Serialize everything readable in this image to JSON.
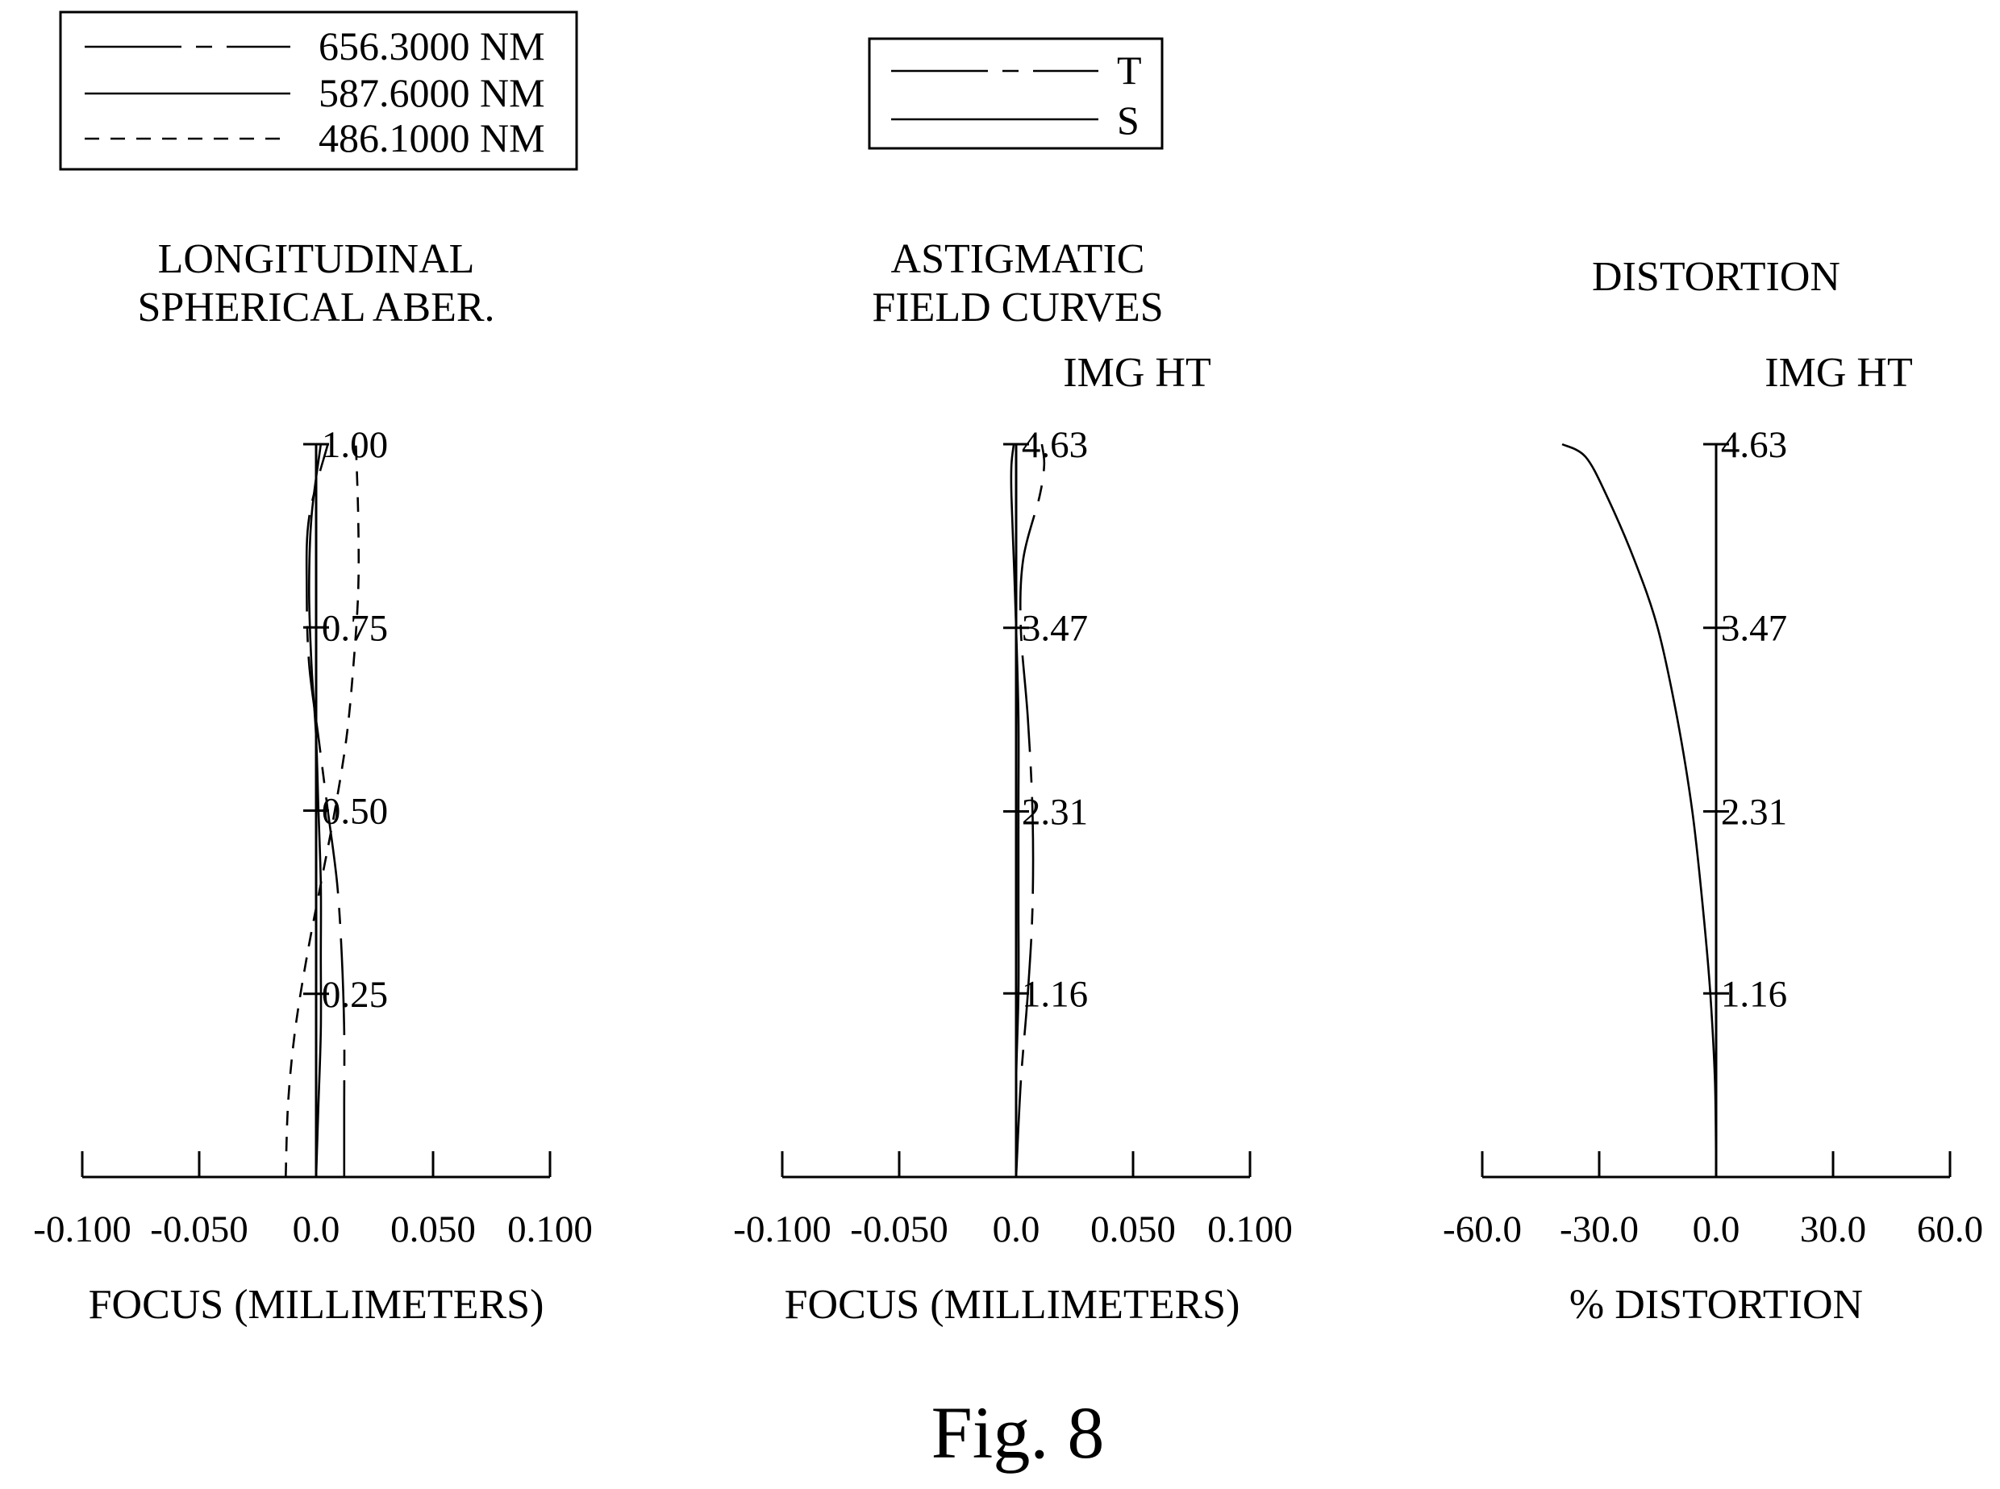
{
  "figure_caption": "Fig. 8",
  "legends": {
    "wavelength": [
      {
        "label": "656.3000 NM",
        "style": "long-dash"
      },
      {
        "label": "587.6000 NM",
        "style": "solid"
      },
      {
        "label": "486.1000 NM",
        "style": "short-dash"
      }
    ],
    "field": [
      {
        "label": "T",
        "style": "long-dash"
      },
      {
        "label": "S",
        "style": "solid"
      }
    ]
  },
  "chart_data": [
    {
      "id": "spherical",
      "type": "line",
      "title_lines": [
        "LONGITUDINAL",
        "SPHERICAL  ABER."
      ],
      "xlabel": "FOCUS (MILLIMETERS)",
      "ylabel_header": "",
      "xlim": [
        -0.1,
        0.1
      ],
      "ylim": [
        0,
        1
      ],
      "x_ticks": [
        -0.1,
        -0.05,
        0,
        0.05,
        0.1
      ],
      "x_tick_labels": [
        "-0.100",
        "-0.050",
        "0.0",
        "0.050",
        "0.100"
      ],
      "y_ticks": [
        0.25,
        0.5,
        0.75,
        1.0
      ],
      "y_tick_labels": [
        "0.25",
        "0.50",
        "0.75",
        "1.00"
      ],
      "series": [
        {
          "name": "656.3000 NM",
          "style": "long-dash",
          "points": [
            [
              0.012,
              0
            ],
            [
              0.012,
              0.1
            ],
            [
              0.012,
              0.2
            ],
            [
              0.011,
              0.3
            ],
            [
              0.009,
              0.4
            ],
            [
              0.005,
              0.5
            ],
            [
              0.001,
              0.6
            ],
            [
              -0.003,
              0.7
            ],
            [
              -0.004,
              0.8
            ],
            [
              -0.003,
              0.9
            ],
            [
              0.005,
              1.0
            ]
          ]
        },
        {
          "name": "587.6000 NM",
          "style": "solid",
          "points": [
            [
              0,
              0
            ],
            [
              0.001,
              0.1
            ],
            [
              0.002,
              0.2
            ],
            [
              0.002,
              0.3
            ],
            [
              0.002,
              0.4
            ],
            [
              0.001,
              0.5
            ],
            [
              0,
              0.6
            ],
            [
              -0.002,
              0.7
            ],
            [
              -0.003,
              0.8
            ],
            [
              -0.002,
              0.9
            ],
            [
              0.002,
              1.0
            ]
          ]
        },
        {
          "name": "486.1000 NM",
          "style": "short-dash",
          "points": [
            [
              -0.013,
              0
            ],
            [
              -0.012,
              0.1
            ],
            [
              -0.009,
              0.2
            ],
            [
              -0.004,
              0.3
            ],
            [
              0.002,
              0.4
            ],
            [
              0.008,
              0.5
            ],
            [
              0.013,
              0.6
            ],
            [
              0.016,
              0.7
            ],
            [
              0.018,
              0.8
            ],
            [
              0.018,
              0.9
            ],
            [
              0.017,
              1.0
            ]
          ]
        }
      ]
    },
    {
      "id": "astigmatic",
      "type": "line",
      "title_lines": [
        "ASTIGMATIC",
        "FIELD  CURVES"
      ],
      "xlabel": "FOCUS (MILLIMETERS)",
      "ylabel_header": "IMG HT",
      "xlim": [
        -0.1,
        0.1
      ],
      "ylim": [
        0,
        4.63
      ],
      "x_ticks": [
        -0.1,
        -0.05,
        0,
        0.05,
        0.1
      ],
      "x_tick_labels": [
        "-0.100",
        "-0.050",
        "0.0",
        "0.050",
        "0.100"
      ],
      "y_ticks": [
        1.16,
        2.31,
        3.47,
        4.63
      ],
      "y_tick_labels": [
        "1.16",
        "2.31",
        "3.47",
        "4.63"
      ],
      "series": [
        {
          "name": "T",
          "style": "long-dash",
          "points": [
            [
              0,
              0
            ],
            [
              0.002,
              0.6
            ],
            [
              0.005,
              1.16
            ],
            [
              0.007,
              1.7
            ],
            [
              0.007,
              2.31
            ],
            [
              0.005,
              2.9
            ],
            [
              0.002,
              3.47
            ],
            [
              0.003,
              3.9
            ],
            [
              0.01,
              4.3
            ],
            [
              0.012,
              4.5
            ],
            [
              0.011,
              4.63
            ]
          ]
        },
        {
          "name": "S",
          "style": "solid",
          "points": [
            [
              0,
              0
            ],
            [
              0,
              0.6
            ],
            [
              0.001,
              1.16
            ],
            [
              0.001,
              1.7
            ],
            [
              0.001,
              2.31
            ],
            [
              0.001,
              2.9
            ],
            [
              0,
              3.47
            ],
            [
              -0.001,
              3.9
            ],
            [
              -0.002,
              4.3
            ],
            [
              -0.002,
              4.5
            ],
            [
              -0.001,
              4.63
            ]
          ]
        }
      ]
    },
    {
      "id": "distortion",
      "type": "line",
      "title_lines": [
        "DISTORTION"
      ],
      "xlabel": "%  DISTORTION",
      "ylabel_header": "IMG HT",
      "xlim": [
        -60,
        60
      ],
      "ylim": [
        0,
        4.63
      ],
      "x_ticks": [
        -60,
        -30,
        0,
        30,
        60
      ],
      "x_tick_labels": [
        "-60.0",
        "-30.0",
        "0.0",
        "30.0",
        "60.0"
      ],
      "y_ticks": [
        1.16,
        2.31,
        3.47,
        4.63
      ],
      "y_tick_labels": [
        "1.16",
        "2.31",
        "3.47",
        "4.63"
      ],
      "series": [
        {
          "name": "distortion",
          "style": "solid",
          "points": [
            [
              0,
              0
            ],
            [
              -0.3,
              0.6
            ],
            [
              -1.5,
              1.16
            ],
            [
              -3.4,
              1.7
            ],
            [
              -6.1,
              2.31
            ],
            [
              -10,
              2.9
            ],
            [
              -15,
              3.47
            ],
            [
              -21,
              3.9
            ],
            [
              -28,
              4.3
            ],
            [
              -33.5,
              4.55
            ],
            [
              -39.5,
              4.63
            ]
          ]
        }
      ]
    }
  ]
}
